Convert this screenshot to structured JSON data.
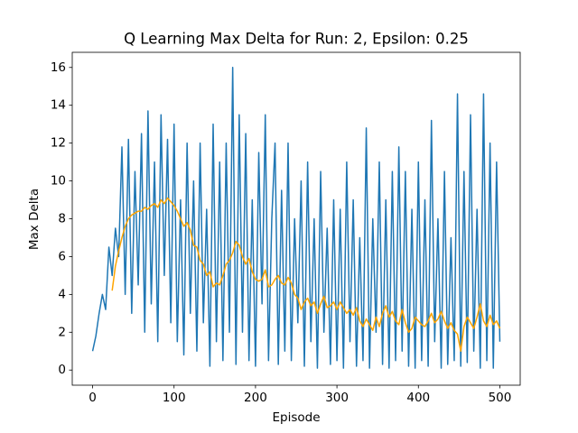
{
  "chart_data": {
    "type": "line",
    "title": "Q Learning Max Delta for Run: 2, Epsilon: 0.25",
    "x_label": "Episode",
    "y_label": "Max Delta",
    "x": [
      0,
      4,
      8,
      12,
      16,
      20,
      24,
      28,
      32,
      36,
      40,
      44,
      48,
      52,
      56,
      60,
      64,
      68,
      72,
      76,
      80,
      84,
      88,
      92,
      96,
      100,
      104,
      108,
      112,
      116,
      120,
      124,
      128,
      132,
      136,
      140,
      144,
      148,
      152,
      156,
      160,
      164,
      168,
      172,
      176,
      180,
      184,
      188,
      192,
      196,
      200,
      204,
      208,
      212,
      216,
      220,
      224,
      228,
      232,
      236,
      240,
      244,
      248,
      252,
      256,
      260,
      264,
      268,
      272,
      276,
      280,
      284,
      288,
      292,
      296,
      300,
      304,
      308,
      312,
      316,
      320,
      324,
      328,
      332,
      336,
      340,
      344,
      348,
      352,
      356,
      360,
      364,
      368,
      372,
      376,
      380,
      384,
      388,
      392,
      396,
      400,
      404,
      408,
      412,
      416,
      420,
      424,
      428,
      432,
      436,
      440,
      444,
      448,
      452,
      456,
      460,
      464,
      468,
      472,
      476,
      480,
      484,
      488,
      492,
      496,
      500
    ],
    "series": [
      {
        "color": "#1f77b4",
        "values": [
          1.0,
          1.8,
          3.0,
          4.0,
          3.2,
          6.5,
          5.0,
          7.5,
          6.0,
          11.8,
          4.0,
          12.2,
          3.0,
          10.5,
          4.5,
          12.5,
          2.0,
          13.7,
          3.5,
          11.0,
          1.5,
          13.5,
          5.0,
          12.2,
          2.5,
          13.0,
          1.5,
          9.0,
          0.8,
          12.0,
          3.0,
          10.0,
          1.0,
          12.0,
          2.5,
          8.5,
          0.2,
          13.0,
          1.5,
          11.0,
          0.5,
          12.0,
          2.0,
          16.0,
          0.3,
          13.5,
          2.0,
          12.5,
          0.5,
          9.0,
          0.2,
          11.5,
          3.5,
          13.5,
          0.5,
          8.0,
          12.0,
          0.3,
          9.5,
          1.0,
          12.0,
          0.5,
          8.0,
          2.5,
          10.0,
          0.2,
          11.0,
          1.5,
          8.0,
          0.1,
          10.5,
          2.0,
          7.5,
          0.3,
          9.0,
          0.5,
          8.5,
          0.1,
          11.0,
          1.5,
          9.0,
          0.2,
          7.0,
          0.5,
          12.8,
          0.1,
          8.0,
          2.0,
          11.0,
          0.3,
          9.0,
          0.1,
          10.5,
          0.5,
          11.8,
          1.0,
          10.5,
          0.2,
          8.5,
          0.1,
          11.0,
          0.5,
          9.0,
          0.2,
          13.2,
          1.5,
          8.0,
          0.1,
          10.5,
          0.3,
          7.0,
          0.5,
          14.6,
          0.2,
          10.5,
          0.4,
          13.5,
          1.0,
          8.5,
          0.1,
          14.6,
          0.5,
          12.0,
          0.1,
          11.0,
          1.5
        ]
      },
      {
        "color": "#ffa500",
        "values": [
          null,
          null,
          null,
          null,
          null,
          null,
          4.2,
          5.5,
          6.3,
          7.0,
          7.6,
          8.0,
          8.2,
          8.3,
          8.4,
          8.4,
          8.6,
          8.5,
          8.7,
          8.8,
          8.6,
          9.0,
          8.8,
          9.1,
          8.9,
          8.7,
          8.4,
          8.0,
          7.6,
          7.8,
          7.4,
          6.6,
          6.5,
          5.8,
          5.6,
          5.0,
          5.2,
          4.4,
          4.6,
          4.5,
          5.0,
          5.6,
          5.8,
          6.2,
          6.8,
          6.6,
          6.0,
          5.6,
          5.9,
          5.2,
          4.8,
          4.7,
          4.8,
          5.3,
          4.4,
          4.5,
          4.8,
          5.0,
          4.6,
          4.5,
          4.9,
          4.6,
          4.0,
          3.8,
          3.2,
          3.6,
          3.8,
          3.4,
          3.6,
          3.0,
          3.5,
          3.9,
          3.3,
          3.4,
          3.6,
          3.2,
          3.6,
          3.3,
          3.0,
          3.2,
          2.9,
          3.3,
          2.6,
          2.3,
          2.7,
          2.4,
          2.1,
          2.8,
          2.3,
          3.0,
          3.4,
          2.8,
          3.1,
          2.6,
          2.4,
          3.2,
          2.5,
          2.0,
          2.2,
          2.8,
          2.6,
          2.4,
          2.3,
          2.6,
          3.0,
          2.5,
          2.7,
          3.1,
          2.6,
          2.2,
          2.5,
          2.1,
          1.9,
          1.0,
          2.3,
          2.8,
          2.5,
          2.2,
          2.8,
          3.5,
          2.6,
          2.3,
          2.9,
          2.4,
          2.6,
          2.2
        ]
      }
    ],
    "xlim": [
      -25,
      525
    ],
    "ylim": [
      -0.8,
      16.8
    ],
    "xticks": [
      0,
      100,
      200,
      300,
      400,
      500
    ],
    "yticks": [
      0,
      2,
      4,
      6,
      8,
      10,
      12,
      14,
      16
    ]
  }
}
